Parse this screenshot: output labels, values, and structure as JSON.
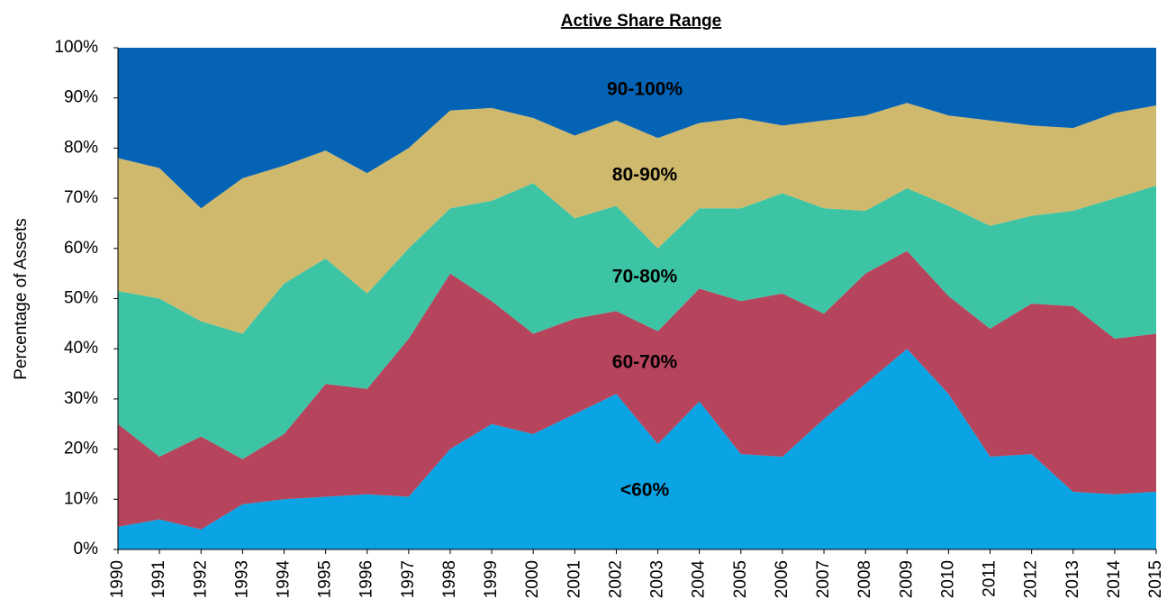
{
  "chart_data": {
    "type": "stacked_area",
    "title": "Active Share Range",
    "ylabel": "Percentage of Assets",
    "categories": [
      "1990",
      "1991",
      "1992",
      "1993",
      "1994",
      "1995",
      "1996",
      "1997",
      "1998",
      "1999",
      "2000",
      "2001",
      "2002",
      "2003",
      "2004",
      "2005",
      "2006",
      "2007",
      "2008",
      "2009",
      "2010",
      "2011",
      "2012",
      "2013",
      "2014",
      "2015"
    ],
    "ylim": [
      0,
      100
    ],
    "yticks": [
      {
        "value": 0,
        "label": "0%"
      },
      {
        "value": 10,
        "label": "10%"
      },
      {
        "value": 20,
        "label": "20%"
      },
      {
        "value": 30,
        "label": "30%"
      },
      {
        "value": 40,
        "label": "40%"
      },
      {
        "value": 50,
        "label": "50%"
      },
      {
        "value": 60,
        "label": "60%"
      },
      {
        "value": 70,
        "label": "70%"
      },
      {
        "value": 80,
        "label": "80%"
      },
      {
        "value": 90,
        "label": "90%"
      },
      {
        "value": 100,
        "label": "100%"
      }
    ],
    "series": [
      {
        "name": "<60%",
        "color": "#0aa3e3",
        "values": [
          4.5,
          6,
          4,
          9,
          10,
          10.5,
          11,
          10.5,
          20,
          25,
          23,
          27,
          31,
          21,
          29.5,
          19,
          18.5,
          26,
          33,
          40,
          31,
          18.5,
          19,
          11.5,
          11,
          11.5
        ]
      },
      {
        "name": "60-70%",
        "color": "#b5445c",
        "values": [
          20.5,
          12.5,
          18.5,
          9,
          13,
          22.5,
          21,
          31.5,
          35,
          24.5,
          20,
          19,
          16.5,
          22.5,
          22.5,
          30.5,
          32.5,
          21,
          22,
          19.5,
          19.5,
          25.5,
          30,
          37,
          31,
          31.5
        ]
      },
      {
        "name": "70-80%",
        "color": "#3cc4a4",
        "values": [
          26.5,
          31.5,
          23,
          25,
          30,
          25,
          19,
          18,
          13,
          20,
          30,
          20,
          21,
          16.5,
          16,
          18.5,
          20,
          21,
          12.5,
          12.5,
          18,
          20.5,
          17.5,
          19,
          28,
          29.5
        ]
      },
      {
        "name": "80-90%",
        "color": "#cfb96c",
        "values": [
          26.5,
          26,
          22.5,
          31,
          23.5,
          21.5,
          24,
          20,
          19.5,
          18.5,
          13,
          16.5,
          17,
          22,
          17,
          18,
          13.5,
          17.5,
          19,
          17,
          18,
          21,
          18,
          16.5,
          17,
          16
        ]
      },
      {
        "name": "90-100%",
        "color": "#0563b5",
        "values": [
          22,
          24,
          32,
          26,
          23.5,
          20.5,
          25,
          20,
          12.5,
          12,
          14,
          17.5,
          14.5,
          18,
          15,
          14,
          15.5,
          14.5,
          13.5,
          11,
          13.5,
          14.5,
          15.5,
          16,
          13,
          11.5
        ]
      }
    ]
  }
}
